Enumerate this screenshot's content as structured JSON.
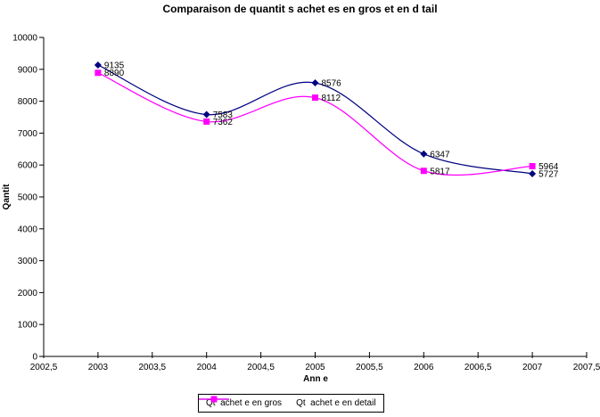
{
  "chart_data": {
    "type": "line",
    "title": "Comparaison de quantit s achet es en gros et en d tail",
    "xlabel": "Ann e",
    "ylabel": "Qantit",
    "x": [
      2003,
      2004,
      2005,
      2006,
      2007
    ],
    "series": [
      {
        "name": "Qt  achet e en gros",
        "values": [
          9135,
          7583,
          8576,
          6347,
          5727
        ],
        "color": "#000080",
        "marker": "diamond"
      },
      {
        "name": "Qt  achet e en detail",
        "values": [
          8890,
          7362,
          8112,
          5817,
          5964
        ],
        "color": "#FF00FF",
        "marker": "square"
      }
    ],
    "xlim": [
      2002.5,
      2007.5
    ],
    "ylim": [
      0,
      10000
    ],
    "x_ticks": [
      {
        "value": 2002.5,
        "label": "2002,5"
      },
      {
        "value": 2003,
        "label": "2003"
      },
      {
        "value": 2003.5,
        "label": "2003,5"
      },
      {
        "value": 2004,
        "label": "2004"
      },
      {
        "value": 2004.5,
        "label": "2004,5"
      },
      {
        "value": 2005,
        "label": "2005"
      },
      {
        "value": 2005.5,
        "label": "2005,5"
      },
      {
        "value": 2006,
        "label": "2006"
      },
      {
        "value": 2006.5,
        "label": "2006,5"
      },
      {
        "value": 2007,
        "label": "2007"
      },
      {
        "value": 2007.5,
        "label": "2007,5"
      }
    ],
    "y_ticks": [
      {
        "value": 0,
        "label": "0"
      },
      {
        "value": 1000,
        "label": "1000"
      },
      {
        "value": 2000,
        "label": "2000"
      },
      {
        "value": 3000,
        "label": "3000"
      },
      {
        "value": 4000,
        "label": "4000"
      },
      {
        "value": 5000,
        "label": "5000"
      },
      {
        "value": 6000,
        "label": "6000"
      },
      {
        "value": 7000,
        "label": "7000"
      },
      {
        "value": 8000,
        "label": "8000"
      },
      {
        "value": 9000,
        "label": "9000"
      },
      {
        "value": 10000,
        "label": "10000"
      }
    ],
    "grid": false,
    "smooth": true,
    "legend_position": "bottom",
    "data_labels": true,
    "axis_color": "#000000",
    "background_color": "#FFFFFF"
  }
}
